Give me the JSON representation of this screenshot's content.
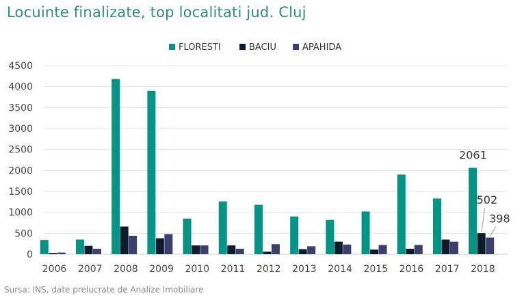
{
  "title": "Locuinte finalizate, top localitati jud. Cluj",
  "source": "Sursa: INS, date prelucrate de Analize Imobiliare",
  "chart_data": {
    "type": "bar",
    "categories": [
      "2006",
      "2007",
      "2008",
      "2009",
      "2010",
      "2011",
      "2012",
      "2013",
      "2014",
      "2015",
      "2016",
      "2017",
      "2018"
    ],
    "series": [
      {
        "name": "FLORESTI",
        "color": "#009485",
        "values": [
          340,
          350,
          4180,
          3900,
          850,
          1260,
          1180,
          900,
          820,
          1020,
          1900,
          1330,
          2061
        ]
      },
      {
        "name": "BACIU",
        "color": "#0e1b2c",
        "values": [
          30,
          200,
          660,
          380,
          210,
          210,
          60,
          120,
          300,
          110,
          130,
          350,
          502
        ]
      },
      {
        "name": "APAHIDA",
        "color": "#3a3f6e",
        "values": [
          40,
          130,
          440,
          480,
          210,
          130,
          240,
          190,
          230,
          220,
          220,
          300,
          398
        ]
      }
    ],
    "data_labels": [
      {
        "series": "FLORESTI",
        "category": "2018",
        "text": "2061"
      },
      {
        "series": "BACIU",
        "category": "2018",
        "text": "502"
      },
      {
        "series": "APAHIDA",
        "category": "2018",
        "text": "398"
      }
    ],
    "ylim": [
      0,
      4500
    ],
    "yticks": [
      "0",
      "500",
      "1000",
      "1500",
      "2000",
      "2500",
      "3000",
      "3500",
      "4000",
      "4500"
    ],
    "grid": true,
    "legend_position": "top-center",
    "xlabel": "",
    "ylabel": ""
  }
}
